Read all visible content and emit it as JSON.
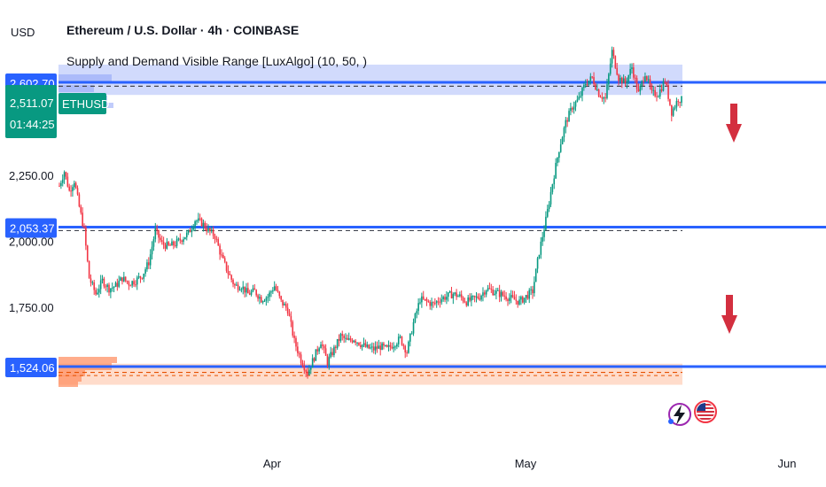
{
  "header": {
    "title": "Ethereum / U.S. Dollar · 4h · COINBASE",
    "indicator": "Supply and Demand Visible Range [LuxAlgo] (10, 50, )",
    "currency": "USD"
  },
  "colors": {
    "up": "#089981",
    "down": "#f23645",
    "level_line": "#2962ff",
    "supply_zone": "#d1dafc",
    "demand_zone": "#ffdccb",
    "demand_bar": "#ff8a5b",
    "arrow": "#d32f3f",
    "tag_green": "#089981",
    "tag_blue": "#2962ff"
  },
  "icons": [
    "lightning-event-icon",
    "us-flag-icon"
  ],
  "chart_data": {
    "type": "candlestick",
    "symbol": "ETHUSD",
    "title": "Ethereum / U.S. Dollar · 4h · COINBASE",
    "y_axis": {
      "ticks": [
        "2,250.00",
        "2,000.00",
        "1,750.00"
      ],
      "tick_values": [
        2250,
        2000,
        1750
      ]
    },
    "x_axis": {
      "ticks": [
        "Apr",
        "May",
        "Jun"
      ]
    },
    "price_tags": [
      {
        "label": "2,602.70",
        "value": 2602.7
      },
      {
        "label": "2,511.07",
        "value": 2511.07
      },
      {
        "label": "01:44:25"
      },
      {
        "label": "2,053.37",
        "value": 2053.37
      },
      {
        "label": "1,524.06",
        "value": 1524.06
      }
    ],
    "symbol_tag": "ETHUSD",
    "levels": [
      2602.7,
      2053.37,
      1524.06
    ],
    "zones": [
      {
        "name": "supply",
        "top": 2670,
        "bottom": 2555,
        "avg": 2588
      },
      {
        "name": "equilibrium",
        "avg": 2040
      },
      {
        "name": "demand",
        "top": 1535,
        "bottom": 1455,
        "avg": 1502
      }
    ],
    "price_path": [
      [
        0,
        2210
      ],
      [
        3,
        2265
      ],
      [
        6,
        2190
      ],
      [
        9,
        2230
      ],
      [
        12,
        2130
      ],
      [
        15,
        2040
      ],
      [
        18,
        1860
      ],
      [
        22,
        1800
      ],
      [
        26,
        1850
      ],
      [
        30,
        1820
      ],
      [
        34,
        1830
      ],
      [
        38,
        1860
      ],
      [
        42,
        1840
      ],
      [
        46,
        1850
      ],
      [
        50,
        1870
      ],
      [
        54,
        1920
      ],
      [
        58,
        2040
      ],
      [
        62,
        1990
      ],
      [
        66,
        1980
      ],
      [
        70,
        1990
      ],
      [
        74,
        2010
      ],
      [
        78,
        2030
      ],
      [
        82,
        2080
      ],
      [
        86,
        2070
      ],
      [
        90,
        2040
      ],
      [
        94,
        2020
      ],
      [
        98,
        1940
      ],
      [
        102,
        1880
      ],
      [
        106,
        1830
      ],
      [
        110,
        1830
      ],
      [
        114,
        1800
      ],
      [
        118,
        1810
      ],
      [
        122,
        1780
      ],
      [
        126,
        1790
      ],
      [
        130,
        1830
      ],
      [
        134,
        1770
      ],
      [
        138,
        1740
      ],
      [
        142,
        1620
      ],
      [
        146,
        1550
      ],
      [
        150,
        1500
      ],
      [
        154,
        1560
      ],
      [
        158,
        1620
      ],
      [
        162,
        1540
      ],
      [
        166,
        1590
      ],
      [
        170,
        1640
      ],
      [
        174,
        1620
      ],
      [
        178,
        1630
      ],
      [
        182,
        1610
      ],
      [
        186,
        1595
      ],
      [
        190,
        1590
      ],
      [
        194,
        1600
      ],
      [
        198,
        1590
      ],
      [
        202,
        1610
      ],
      [
        206,
        1630
      ],
      [
        210,
        1580
      ],
      [
        214,
        1690
      ],
      [
        218,
        1780
      ],
      [
        222,
        1770
      ],
      [
        226,
        1760
      ],
      [
        230,
        1780
      ],
      [
        234,
        1790
      ],
      [
        238,
        1800
      ],
      [
        242,
        1790
      ],
      [
        246,
        1770
      ],
      [
        250,
        1780
      ],
      [
        254,
        1790
      ],
      [
        258,
        1820
      ],
      [
        262,
        1810
      ],
      [
        266,
        1800
      ],
      [
        270,
        1790
      ],
      [
        274,
        1780
      ],
      [
        278,
        1770
      ],
      [
        282,
        1790
      ],
      [
        286,
        1810
      ],
      [
        290,
        1960
      ],
      [
        294,
        2080
      ],
      [
        298,
        2220
      ],
      [
        302,
        2350
      ],
      [
        306,
        2450
      ],
      [
        310,
        2510
      ],
      [
        314,
        2540
      ],
      [
        318,
        2600
      ],
      [
        322,
        2620
      ],
      [
        326,
        2560
      ],
      [
        330,
        2540
      ],
      [
        334,
        2720
      ],
      [
        338,
        2620
      ],
      [
        342,
        2600
      ],
      [
        346,
        2660
      ],
      [
        350,
        2560
      ],
      [
        354,
        2640
      ],
      [
        358,
        2560
      ],
      [
        362,
        2560
      ],
      [
        366,
        2610
      ],
      [
        370,
        2490
      ],
      [
        374,
        2540
      ],
      [
        376,
        2535
      ]
    ]
  }
}
